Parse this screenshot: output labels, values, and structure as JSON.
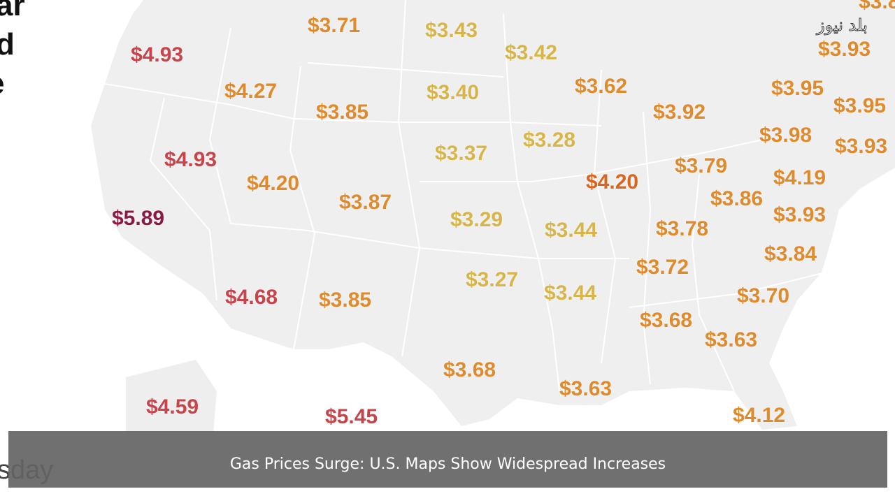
{
  "watermark": "بلد نيوز",
  "caption": "Gas Prices Surge: U.S. Maps Show Widespread Increases",
  "left_fragments": [
    "ar",
    "d",
    "e"
  ],
  "bottom_fragment": "sday",
  "tier_colors": {
    "gold": "#d8b548",
    "orange": "#df8a2c",
    "red": "#c9434b",
    "maroon": "#8b1a45"
  },
  "prices": [
    {
      "value": "$3.71",
      "tier": "orange"
    },
    {
      "value": "$3.43",
      "tier": "gold"
    },
    {
      "value": "$3.42",
      "tier": "gold"
    },
    {
      "value": "$4.93",
      "tier": "red"
    },
    {
      "value": "$4.27",
      "tier": "orange"
    },
    {
      "value": "$3.85",
      "tier": "orange"
    },
    {
      "value": "$3.40",
      "tier": "gold"
    },
    {
      "value": "$3.62",
      "tier": "orange"
    },
    {
      "value": "$3.92",
      "tier": "orange"
    },
    {
      "value": "$3.95",
      "tier": "orange"
    },
    {
      "value": "$3.93",
      "tier": "orange"
    },
    {
      "value": "$3.95",
      "tier": "orange"
    },
    {
      "value": "$3.98",
      "tier": "orange"
    },
    {
      "value": "$3.93",
      "tier": "orange"
    },
    {
      "value": "$3.28",
      "tier": "gold"
    },
    {
      "value": "$3.37",
      "tier": "gold"
    },
    {
      "value": "$4.93",
      "tier": "red"
    },
    {
      "value": "$4.20",
      "tier": "orange"
    },
    {
      "value": "$3.87",
      "tier": "orange"
    },
    {
      "value": "$4.20",
      "tier": "dark-orange"
    },
    {
      "value": "$3.79",
      "tier": "orange"
    },
    {
      "value": "$4.19",
      "tier": "orange"
    },
    {
      "value": "$3.86",
      "tier": "orange"
    },
    {
      "value": "$3.93",
      "tier": "orange"
    },
    {
      "value": "$5.89",
      "tier": "maroon"
    },
    {
      "value": "$3.29",
      "tier": "gold"
    },
    {
      "value": "$3.44",
      "tier": "gold"
    },
    {
      "value": "$3.78",
      "tier": "orange"
    },
    {
      "value": "$3.84",
      "tier": "orange"
    },
    {
      "value": "$3.72",
      "tier": "orange"
    },
    {
      "value": "$3.27",
      "tier": "gold"
    },
    {
      "value": "$3.44",
      "tier": "gold"
    },
    {
      "value": "$4.68",
      "tier": "red"
    },
    {
      "value": "$3.85",
      "tier": "orange"
    },
    {
      "value": "$3.70",
      "tier": "orange"
    },
    {
      "value": "$3.68",
      "tier": "orange"
    },
    {
      "value": "$3.63",
      "tier": "orange"
    },
    {
      "value": "$3.68",
      "tier": "orange"
    },
    {
      "value": "$3.63",
      "tier": "orange"
    },
    {
      "value": "$4.12",
      "tier": "orange"
    },
    {
      "value": "$4.59",
      "tier": "red"
    },
    {
      "value": "$5.45",
      "tier": "red"
    },
    {
      "value": "$3.8",
      "tier": "orange"
    }
  ]
}
